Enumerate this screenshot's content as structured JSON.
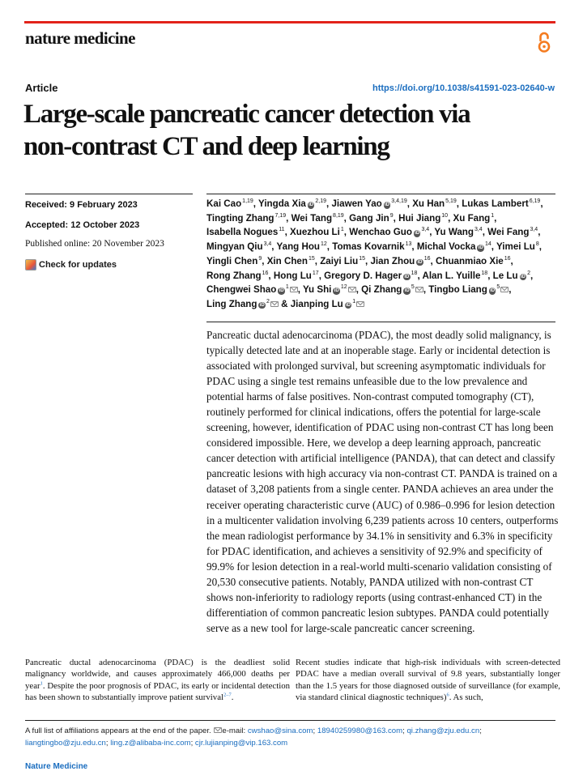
{
  "header": {
    "journal": "nature medicine",
    "article_type": "Article",
    "doi": "https://doi.org/10.1038/s41591-023-02640-w"
  },
  "title_lines": [
    "Large-scale pancreatic cancer detection via",
    "non-contrast CT and deep learning"
  ],
  "meta": {
    "received": "Received: 9 February 2023",
    "accepted": "Accepted: 12 October 2023",
    "published": "Published online: 20 November 2023",
    "check_updates": "Check for updates"
  },
  "authors": [
    {
      "name": "Kai Cao",
      "sup": "1,19"
    },
    {
      "name": "Yingda Xia",
      "orcid": true,
      "sup": "2,19"
    },
    {
      "name": "Jiawen Yao",
      "orcid": true,
      "sup": "3,4,19"
    },
    {
      "name": "Xu Han",
      "sup": "5,19"
    },
    {
      "name": "Lukas Lambert",
      "sup": "6,19"
    },
    {
      "name": "Tingting Zhang",
      "sup": "7,19"
    },
    {
      "name": "Wei Tang",
      "sup": "8,19"
    },
    {
      "name": "Gang Jin",
      "sup": "9"
    },
    {
      "name": "Hui Jiang",
      "sup": "10"
    },
    {
      "name": "Xu Fang",
      "sup": "1"
    },
    {
      "name": "Isabella Nogues",
      "sup": "11"
    },
    {
      "name": "Xuezhou Li",
      "sup": "1"
    },
    {
      "name": "Wenchao Guo",
      "orcid": true,
      "sup": "3,4"
    },
    {
      "name": "Yu Wang",
      "sup": "3,4"
    },
    {
      "name": "Wei Fang",
      "sup": "3,4"
    },
    {
      "name": "Mingyan Qiu",
      "sup": "3,4"
    },
    {
      "name": "Yang Hou",
      "sup": "12"
    },
    {
      "name": "Tomas Kovarnik",
      "sup": "13"
    },
    {
      "name": "Michal Vocka",
      "orcid": true,
      "sup": "14"
    },
    {
      "name": "Yimei Lu",
      "sup": "8"
    },
    {
      "name": "Yingli Chen",
      "sup": "9"
    },
    {
      "name": "Xin Chen",
      "sup": "15"
    },
    {
      "name": "Zaiyi Liu",
      "sup": "15"
    },
    {
      "name": "Jian Zhou",
      "orcid": true,
      "sup": "16"
    },
    {
      "name": "Chuanmiao Xie",
      "sup": "16"
    },
    {
      "name": "Rong Zhang",
      "sup": "16"
    },
    {
      "name": "Hong Lu",
      "sup": "17"
    },
    {
      "name": "Gregory D. Hager",
      "orcid": true,
      "sup": "18"
    },
    {
      "name": "Alan L. Yuille",
      "sup": "18"
    },
    {
      "name": "Le Lu",
      "orcid": true,
      "sup": "2"
    },
    {
      "name": "Chengwei Shao",
      "orcid": true,
      "sup": "1",
      "email": true
    },
    {
      "name": "Yu Shi",
      "orcid": true,
      "sup": "12",
      "email": true
    },
    {
      "name": "Qi Zhang",
      "orcid": true,
      "sup": "5",
      "email": true
    },
    {
      "name": "Tingbo Liang",
      "orcid": true,
      "sup": "5",
      "email": true
    },
    {
      "name": "Ling Zhang",
      "orcid": true,
      "sup": "2",
      "email": true
    },
    {
      "name": "Jianping Lu",
      "orcid": true,
      "sup": "1",
      "email": true,
      "prefix": "& "
    }
  ],
  "abstract": "Pancreatic ductal adenocarcinoma (PDAC), the most deadly solid malignancy, is typically detected late and at an inoperable stage. Early or incidental detection is associated with prolonged survival, but screening asymptomatic individuals for PDAC using a single test remains unfeasible due to the low prevalence and potential harms of false positives. Non-contrast computed tomography (CT), routinely performed for clinical indications, offers the potential for large-scale screening, however, identification of PDAC using non-contrast CT has long been considered impossible. Here, we develop a deep learning approach, pancreatic cancer detection with artificial intelligence (PANDA), that can detect and classify pancreatic lesions with high accuracy via non-contrast CT. PANDA is trained on a dataset of 3,208 patients from a single center. PANDA achieves an area under the receiver operating characteristic curve (AUC) of 0.986–0.996 for lesion detection in a multicenter validation involving 6,239 patients across 10 centers, outperforms the mean radiologist performance by 34.1% in sensitivity and 6.3% in specificity for PDAC identification, and achieves a sensitivity of 92.9% and specificity of 99.9% for lesion detection in a real-world multi-scenario validation consisting of 20,530 consecutive patients. Notably, PANDA utilized with non-contrast CT shows non-inferiority to radiology reports (using contrast-enhanced CT) in the differentiation of common pancreatic lesion subtypes. PANDA could potentially serve as a new tool for large-scale pancreatic cancer screening.",
  "body": {
    "left_a": "Pancreatic ductal adenocarcinoma (PDAC) is the deadliest solid malignancy worldwide, and causes approximately 466,000 deaths per year",
    "left_ref1": "1",
    "left_b": ". Despite the poor prognosis of PDAC, its early or incidental detection has been shown to substantially improve patient survival",
    "left_ref2": "2–7",
    "left_c": ".",
    "right_a": "Recent studies indicate that high-risk individuals with screen-detected PDAC have a median overall survival of 9.8 years, substantially longer than the 1.5 years for those diagnosed outside of surveillance (for example, via standard clinical diagnostic techniques)",
    "right_ref": "6",
    "right_b": ". As such,"
  },
  "affiliations": {
    "note": "A full list of affiliations appears at the end of the paper.",
    "email_label": "e-mail:",
    "emails": [
      "cwshao@sina.com",
      "18940259980@163.com",
      "qi.zhang@zju.edu.cn",
      "liangtingbo@zju.edu.cn",
      "ling.z@alibaba-inc.com",
      "cjr.lujianping@vip.163.com"
    ]
  },
  "footer": "Nature Medicine",
  "colors": {
    "accent_red": "#e2231a",
    "link_blue": "#1a6dbf",
    "oa_orange": "#f47b20"
  }
}
